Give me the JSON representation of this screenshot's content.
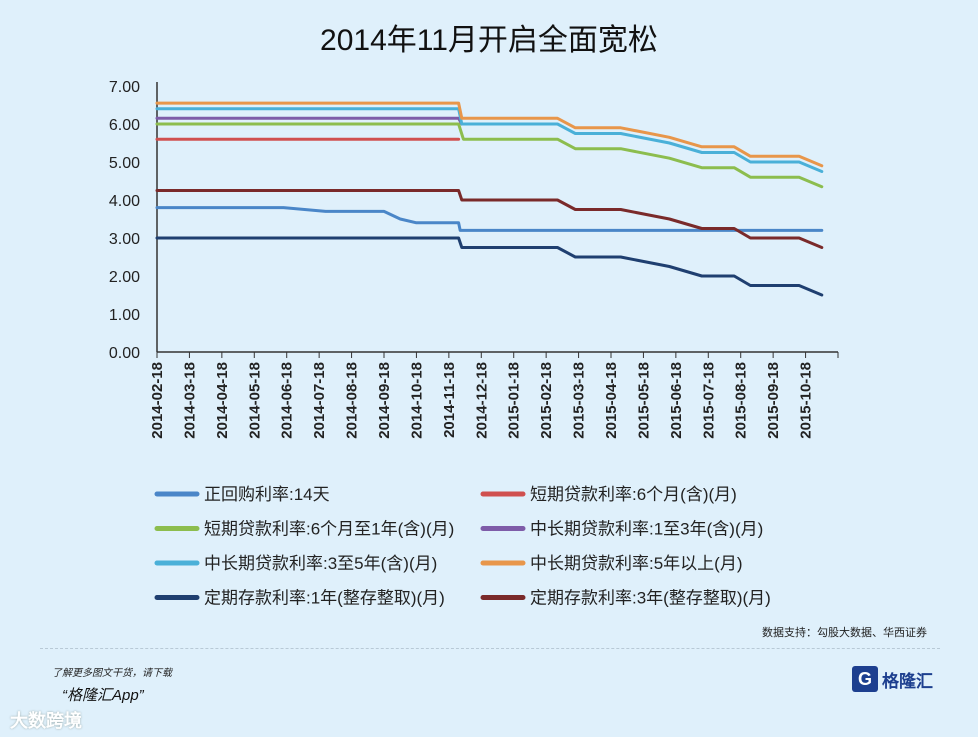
{
  "page": {
    "source": "数据支持：勾股大数据、华西证券",
    "promo_line1": "了解更多图文干货，请下载",
    "promo_line2": "“格隆汇App”",
    "watermark_bottom": "大数跨境",
    "brand_mark": "G",
    "brand_name": "格隆汇"
  },
  "chart_data": {
    "type": "line",
    "title": "2014年11月开启全面宽松",
    "ylim": [
      0,
      7
    ],
    "yticks": [
      "0.00",
      "1.00",
      "2.00",
      "3.00",
      "4.00",
      "5.00",
      "6.00",
      "7.00"
    ],
    "categories": [
      "2014-02-18",
      "2014-03-18",
      "2014-04-18",
      "2014-05-18",
      "2014-06-18",
      "2014-07-18",
      "2014-08-18",
      "2014-09-18",
      "2014-10-18",
      "2014-11-18",
      "2014-12-18",
      "2015-01-18",
      "2015-02-18",
      "2015-03-18",
      "2015-04-18",
      "2015-05-18",
      "2015-06-18",
      "2015-07-18",
      "2015-08-18",
      "2015-09-18",
      "2015-10-18"
    ],
    "legend_position": "bottom",
    "series": [
      {
        "name": "正回购利率:14天",
        "color": "#4a86c8",
        "x": [
          0,
          3.9,
          5.2,
          7,
          7.5,
          8,
          9.3,
          9.35,
          20.5
        ],
        "y": [
          3.8,
          3.8,
          3.7,
          3.7,
          3.5,
          3.4,
          3.4,
          3.2,
          3.2
        ]
      },
      {
        "name": "短期贷款利率:6个月(含)(月)",
        "color": "#d0504f",
        "x": [
          0,
          9.3
        ],
        "y": [
          5.6,
          5.6
        ]
      },
      {
        "name": "短期贷款利率:6个月至1年(含)(月)",
        "color": "#8cbd4e",
        "x": [
          0,
          9.3,
          9.45,
          12.35,
          12.9,
          14.3,
          15.8,
          16.8,
          17.8,
          18.3,
          19.8,
          20.5
        ],
        "y": [
          6.0,
          6.0,
          5.6,
          5.6,
          5.35,
          5.35,
          5.1,
          4.85,
          4.85,
          4.6,
          4.6,
          4.35
        ]
      },
      {
        "name": "中长期贷款利率:1至3年(含)(月)",
        "color": "#7e5ca8",
        "x": [
          0,
          9.3,
          9.4
        ],
        "y": [
          6.15,
          6.15,
          6.0
        ]
      },
      {
        "name": "中长期贷款利率:3至5年(含)(月)",
        "color": "#4ab0d8",
        "x": [
          0,
          9.3,
          9.4,
          12.35,
          12.9,
          14.3,
          15.8,
          16.8,
          17.8,
          18.3,
          19.8,
          20.5
        ],
        "y": [
          6.4,
          6.4,
          6.0,
          6.0,
          5.75,
          5.75,
          5.5,
          5.25,
          5.25,
          5.0,
          5.0,
          4.75
        ]
      },
      {
        "name": "中长期贷款利率:5年以上(月)",
        "color": "#e8964a",
        "x": [
          0,
          9.3,
          9.4,
          12.35,
          12.9,
          14.3,
          15.8,
          16.8,
          17.8,
          18.3,
          19.8,
          20.5
        ],
        "y": [
          6.55,
          6.55,
          6.15,
          6.15,
          5.9,
          5.9,
          5.65,
          5.4,
          5.4,
          5.15,
          5.15,
          4.9
        ]
      },
      {
        "name": "定期存款利率:1年(整存整取)(月)",
        "color": "#1f3f70",
        "x": [
          0,
          9.3,
          9.4,
          12.35,
          12.9,
          14.3,
          15.8,
          16.8,
          17.8,
          18.3,
          19.8,
          20.5
        ],
        "y": [
          3.0,
          3.0,
          2.75,
          2.75,
          2.5,
          2.5,
          2.25,
          2.0,
          2.0,
          1.75,
          1.75,
          1.5
        ]
      },
      {
        "name": "定期存款利率:3年(整存整取)(月)",
        "color": "#7a2a2a",
        "x": [
          0,
          9.3,
          9.4,
          12.35,
          12.9,
          14.3,
          15.8,
          16.8,
          17.8,
          18.3,
          19.8,
          20.5
        ],
        "y": [
          4.25,
          4.25,
          4.0,
          4.0,
          3.75,
          3.75,
          3.5,
          3.25,
          3.25,
          3.0,
          3.0,
          2.75
        ]
      }
    ]
  }
}
